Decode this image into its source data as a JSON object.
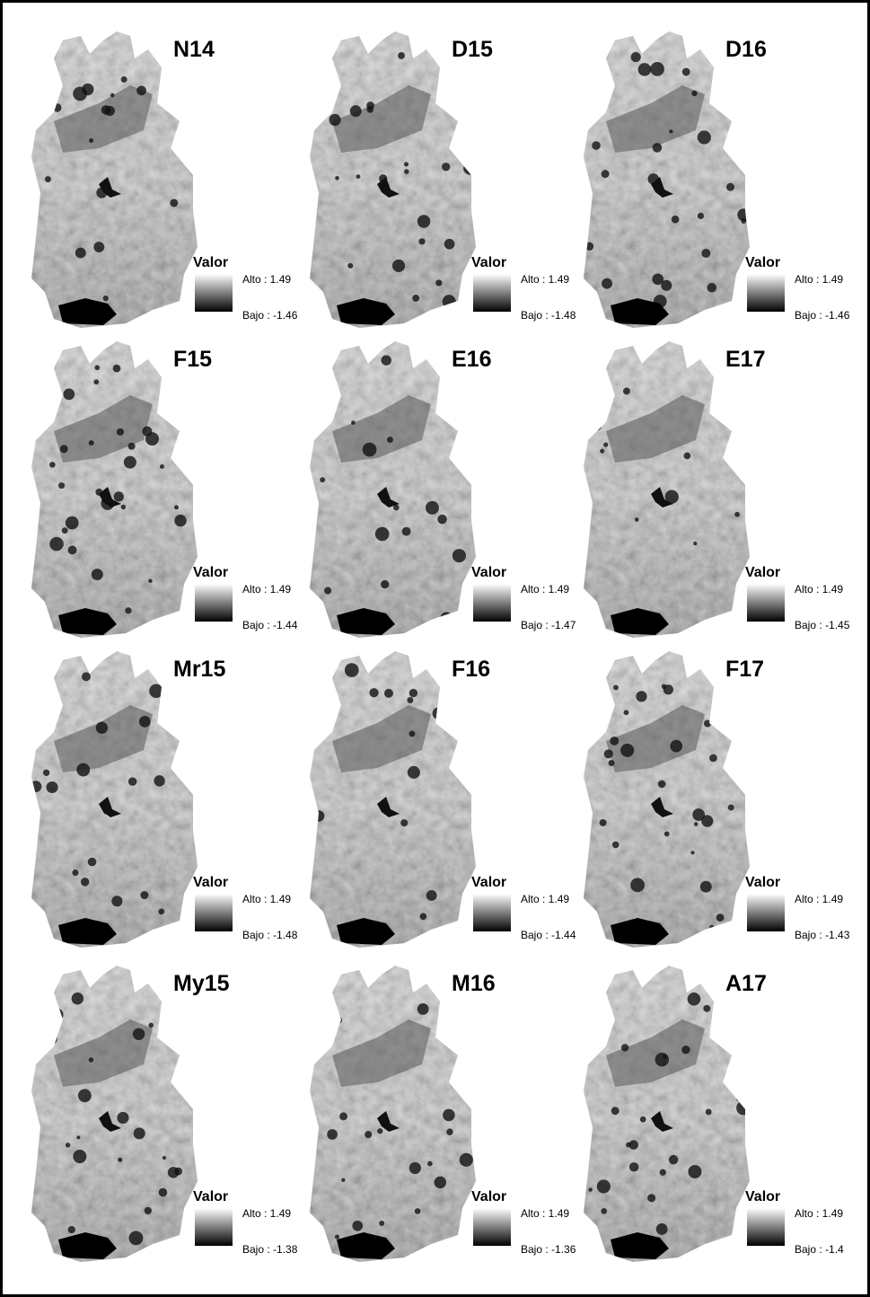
{
  "panels": [
    {
      "title": "N14",
      "legend_title": "Valor",
      "high": "Alto : 1.49",
      "low": "Bajo : -1.46"
    },
    {
      "title": "D15",
      "legend_title": "Valor",
      "high": "Alto : 1.49",
      "low": "Bajo : -1.48"
    },
    {
      "title": "D16",
      "legend_title": "Valor",
      "high": "Alto : 1.49",
      "low": "Bajo : -1.46"
    },
    {
      "title": "F15",
      "legend_title": "Valor",
      "high": "Alto : 1.49",
      "low": "Bajo : -1.44"
    },
    {
      "title": "E16",
      "legend_title": "Valor",
      "high": "Alto : 1.49",
      "low": "Bajo : -1.47"
    },
    {
      "title": "E17",
      "legend_title": "Valor",
      "high": "Alto : 1.49",
      "low": "Bajo : -1.45"
    },
    {
      "title": "Mr15",
      "legend_title": "Valor",
      "high": "Alto : 1.49",
      "low": "Bajo : -1.48"
    },
    {
      "title": "F16",
      "legend_title": "Valor",
      "high": "Alto : 1.49",
      "low": "Bajo : -1.44"
    },
    {
      "title": "F17",
      "legend_title": "Valor",
      "high": "Alto : 1.49",
      "low": "Bajo : -1.43"
    },
    {
      "title": "My15",
      "legend_title": "Valor",
      "high": "Alto : 1.49",
      "low": "Bajo : -1.38"
    },
    {
      "title": "M16",
      "legend_title": "Valor",
      "high": "Alto : 1.49",
      "low": "Bajo : -1.36"
    },
    {
      "title": "A17",
      "legend_title": "Valor",
      "high": "Alto : 1.49",
      "low": "Bajo : -1.4"
    }
  ]
}
